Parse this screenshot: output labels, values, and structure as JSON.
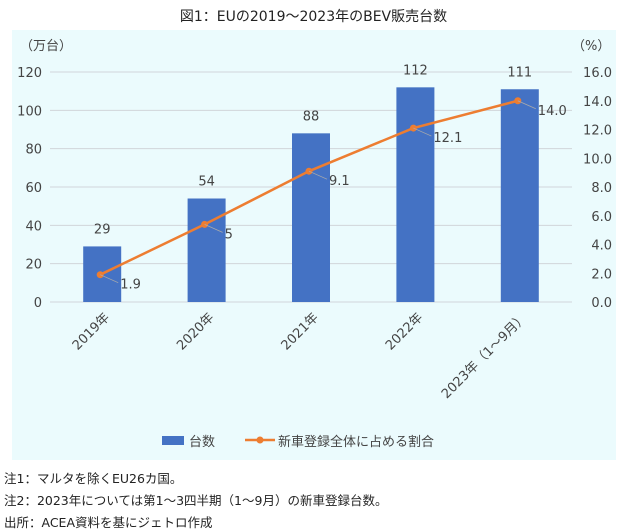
{
  "title": "図1：EUの2019～2023年のBEV販売台数",
  "chart_data": {
    "type": "bar+line",
    "categories": [
      "2019年",
      "2020年",
      "2021年",
      "2022年",
      "2023年（1～9月）"
    ],
    "series": [
      {
        "name": "台数",
        "axis": "left",
        "type": "bar",
        "color": "#4472c4",
        "values": [
          29,
          54,
          88,
          112,
          111
        ],
        "labels": [
          "29",
          "54",
          "88",
          "112",
          "111"
        ]
      },
      {
        "name": "新車登録全体に占める割合",
        "axis": "right",
        "type": "line",
        "color": "#ed7d31",
        "values": [
          1.9,
          5.4,
          9.1,
          12.1,
          14.0
        ],
        "labels": [
          "1.9",
          "5",
          "9.1",
          "12.1",
          "14.0"
        ]
      }
    ],
    "left_axis": {
      "unit": "（万台）",
      "ylim": [
        0,
        120
      ],
      "ticks": [
        "0",
        "20",
        "40",
        "60",
        "80",
        "100",
        "120"
      ]
    },
    "right_axis": {
      "unit": "（%）",
      "ylim": [
        0,
        16
      ],
      "ticks": [
        "0.0",
        "2.0",
        "4.0",
        "6.0",
        "8.0",
        "10.0",
        "12.0",
        "14.0",
        "16.0"
      ]
    },
    "grid": true,
    "legend": "bottom"
  },
  "notes": [
    "注1：マルタを除くEU26カ国。",
    "注2：2023年については第1～3四半期（1～9月）の新車登録台数。",
    "出所：ACEA資料を基にジェトロ作成"
  ]
}
